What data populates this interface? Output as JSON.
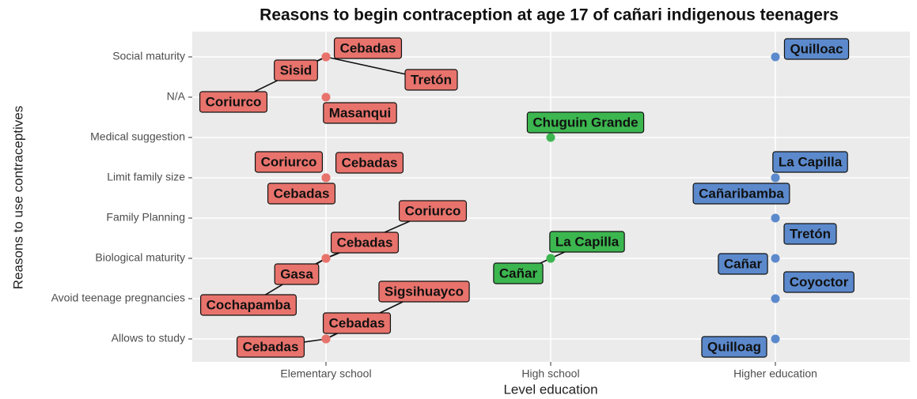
{
  "chart_data": {
    "type": "scatter",
    "title": "Reasons to begin contraception at age 17 of cañari indigenous teenagers",
    "x_label": "Level education",
    "y_label": "Reasons to use contraceptives",
    "x_categories": [
      "Elementary school",
      "High school",
      "Higher education"
    ],
    "y_categories": [
      "Social maturity",
      "N/A",
      "Medical suggestion",
      "Limit family size",
      "Family Planning",
      "Biological maturity",
      "Avoid teenage pregnancies",
      "Allows to study"
    ],
    "colors": [
      "#e8736c",
      "#3cb64f",
      "#5b89cc"
    ],
    "grid": true,
    "points": [
      {
        "x": "Elementary school",
        "y": "Social maturity",
        "label": "Cebadas"
      },
      {
        "x": "Elementary school",
        "y": "Social maturity",
        "label": "Tretón"
      },
      {
        "x": "Elementary school",
        "y": "Social maturity",
        "label": "Sisid"
      },
      {
        "x": "Elementary school",
        "y": "Social maturity",
        "label": "Coriurco"
      },
      {
        "x": "Elementary school",
        "y": "N/A",
        "label": "Masanqui"
      },
      {
        "x": "Elementary school",
        "y": "Limit family size",
        "label": "Coriurco"
      },
      {
        "x": "Elementary school",
        "y": "Limit family size",
        "label": "Cebadas"
      },
      {
        "x": "Elementary school",
        "y": "Limit family size",
        "label": "Cebadas"
      },
      {
        "x": "Elementary school",
        "y": "Biological maturity",
        "label": "Coriurco"
      },
      {
        "x": "Elementary school",
        "y": "Biological maturity",
        "label": "Cebadas"
      },
      {
        "x": "Elementary school",
        "y": "Biological maturity",
        "label": "Gasa"
      },
      {
        "x": "Elementary school",
        "y": "Biological maturity",
        "label": "Cochapamba"
      },
      {
        "x": "Elementary school",
        "y": "Allows to study",
        "label": "Sigsihuayco"
      },
      {
        "x": "Elementary school",
        "y": "Allows to study",
        "label": "Cebadas"
      },
      {
        "x": "Elementary school",
        "y": "Allows to study",
        "label": "Cebadas"
      },
      {
        "x": "High school",
        "y": "Medical suggestion",
        "label": "Chuguin Grande"
      },
      {
        "x": "High school",
        "y": "Biological maturity",
        "label": "La Capilla"
      },
      {
        "x": "High school",
        "y": "Biological maturity",
        "label": "Cañar"
      },
      {
        "x": "Higher education",
        "y": "Social maturity",
        "label": "Quilloac"
      },
      {
        "x": "Higher education",
        "y": "Limit family size",
        "label": "La Capilla"
      },
      {
        "x": "Higher education",
        "y": "Limit family size",
        "label": "Cañaribamba"
      },
      {
        "x": "Higher education",
        "y": "Family Planning",
        "label": "Tretón"
      },
      {
        "x": "Higher education",
        "y": "Biological maturity",
        "label": "Cañar"
      },
      {
        "x": "Higher education",
        "y": "Avoid teenage pregnancies",
        "label": "Coyoctor"
      },
      {
        "x": "Higher education",
        "y": "Allows to study",
        "label": "Quilloag"
      }
    ]
  }
}
